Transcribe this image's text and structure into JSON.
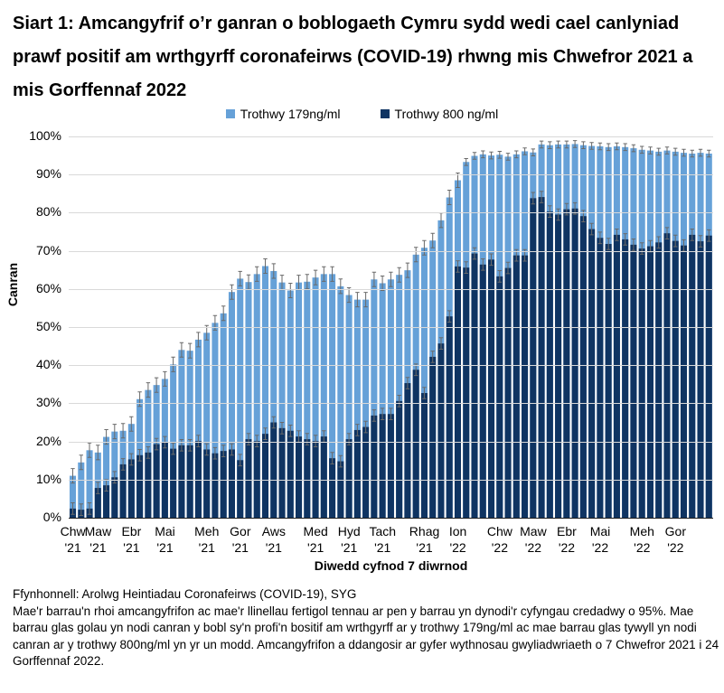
{
  "title": "Siart 1: Amcangyfrif o’r ganran o boblogaeth Cymru sydd wedi cael canlyniad prawf positif am wrthgyrff coronafeirws (COVID-19) rhwng mis Chwefror 2021 a mis Gorffennaf 2022",
  "legend": {
    "items": [
      {
        "label": "Trothwy 179ng/ml",
        "color": "#66A1D8"
      },
      {
        "label": "Trothwy 800 ng/ml",
        "color": "#0F3462"
      }
    ]
  },
  "y_axis": {
    "title": "Canran",
    "min": 0,
    "max": 100,
    "tick_step": 10,
    "tick_labels": [
      "0%",
      "10%",
      "20%",
      "30%",
      "40%",
      "50%",
      "60%",
      "70%",
      "80%",
      "90%",
      "100%"
    ]
  },
  "x_axis": {
    "title": "Diwedd cyfnod 7 diwrnod",
    "ticks": [
      {
        "month": "Chw",
        "year": "'21",
        "week_index": 0
      },
      {
        "month": "Maw",
        "year": "'21",
        "week_index": 3
      },
      {
        "month": "Ebr",
        "year": "'21",
        "week_index": 7
      },
      {
        "month": "Mai",
        "year": "'21",
        "week_index": 11
      },
      {
        "month": "Meh",
        "year": "'21",
        "week_index": 16
      },
      {
        "month": "Gor",
        "year": "'21",
        "week_index": 20
      },
      {
        "month": "Aws",
        "year": "'21",
        "week_index": 24
      },
      {
        "month": "Med",
        "year": "'21",
        "week_index": 29
      },
      {
        "month": "Hyd",
        "year": "'21",
        "week_index": 33
      },
      {
        "month": "Tach",
        "year": "'21",
        "week_index": 37
      },
      {
        "month": "Rhag",
        "year": "'21",
        "week_index": 42
      },
      {
        "month": "Ion",
        "year": "'22",
        "week_index": 46
      },
      {
        "month": "Chw",
        "year": "'22",
        "week_index": 51
      },
      {
        "month": "Maw",
        "year": "'22",
        "week_index": 55
      },
      {
        "month": "Ebr",
        "year": "'22",
        "week_index": 59
      },
      {
        "month": "Mai",
        "year": "'22",
        "week_index": 63
      },
      {
        "month": "Meh",
        "year": "'22",
        "week_index": 68
      },
      {
        "month": "Gor",
        "year": "'22",
        "week_index": 72
      }
    ]
  },
  "chart_data": {
    "type": "bar",
    "stacked": true,
    "x_description": "Wythnosau gwyliadwriaeth (diwedd cyfnod 7 diwrnod), 7 Chwefror 2021 i 24 Gorffennaf 2022, 77 wythnos",
    "ylim": [
      0,
      100
    ],
    "grid": "horizontal",
    "legend_position": "top-center",
    "series": [
      {
        "name": "Trothwy 179ng/ml",
        "role": "total height of bar (light blue)",
        "color": "#66A1D8",
        "values": [
          11.0,
          14.5,
          17.7,
          17.1,
          21.2,
          22.6,
          22.8,
          24.6,
          31.1,
          33.5,
          34.8,
          36.4,
          40.2,
          44.0,
          43.8,
          46.7,
          48.5,
          51.1,
          53.6,
          59.2,
          62.7,
          61.8,
          63.9,
          66.0,
          64.7,
          61.7,
          59.6,
          61.7,
          61.9,
          63.0,
          63.9,
          63.9,
          60.7,
          58.4,
          57.2,
          57.2,
          62.5,
          61.5,
          62.5,
          63.7,
          64.9,
          69.0,
          70.8,
          72.7,
          78.0,
          84.0,
          88.5,
          93.3,
          94.9,
          95.3,
          95.0,
          95.2,
          94.7,
          95.3,
          96.1,
          95.8,
          97.9,
          97.7,
          97.9,
          97.9,
          98.0,
          97.7,
          97.5,
          97.4,
          97.2,
          97.4,
          97.2,
          96.9,
          96.5,
          96.3,
          96.0,
          96.3,
          96.0,
          95.7,
          95.5,
          95.7,
          95.5
        ]
      },
      {
        "name": "Trothwy 800 ng/ml",
        "role": "lower dark-blue segment of bar",
        "color": "#0F3462",
        "values": [
          2.4,
          2.1,
          2.4,
          7.8,
          8.5,
          10.6,
          14.0,
          15.3,
          16.4,
          17.1,
          19.3,
          19.8,
          18.1,
          19.0,
          19.0,
          20.1,
          17.9,
          16.9,
          17.5,
          17.9,
          15.1,
          20.6,
          20.1,
          22.0,
          25.0,
          23.5,
          22.8,
          21.3,
          20.6,
          20.1,
          21.3,
          15.6,
          14.8,
          20.6,
          23.0,
          23.8,
          26.8,
          27.2,
          27.2,
          30.6,
          35.3,
          38.8,
          32.7,
          42.2,
          45.7,
          52.8,
          65.9,
          65.6,
          69.3,
          66.4,
          67.7,
          63.3,
          65.5,
          68.8,
          68.8,
          83.8,
          84.1,
          80.3,
          79.5,
          80.9,
          81.1,
          79.1,
          75.7,
          73.4,
          71.8,
          74.2,
          73.0,
          71.6,
          70.6,
          71.2,
          72.2,
          74.6,
          72.6,
          71.4,
          74.2,
          72.5,
          74.0
        ]
      }
    ],
    "error_bars": {
      "description": "llinellau fertigol tennau ar pen y barrau: cyfyngau credadwy o 95%",
      "color": "#6A6A6A",
      "halfwidth_total_pct": 1.9,
      "halfwidth_total_high_pct": 0.9,
      "halfwidth_dark_pct": 1.5
    }
  },
  "footnotes": {
    "source": "Ffynhonnell: Arolwg Heintiadau Coronafeirws (COVID-19), SYG",
    "note": "Mae'r barrau'n rhoi amcangyfrifon ac mae'r llinellau fertigol tennau ar pen y barrau yn dynodi'r cyfyngau credadwy o 95%. Mae barrau glas golau yn nodi canran y bobl sy'n profi'n bositif am wrthgyrff ar y trothwy 179ng/ml ac mae barrau glas tywyll yn nodi canran ar y trothwy 800ng/ml yn yr un modd. Amcangyfrifon a ddangosir ar gyfer wythnosau gwyliadwriaeth o 7 Chwefror 2021 i 24 Gorffennaf 2022."
  }
}
